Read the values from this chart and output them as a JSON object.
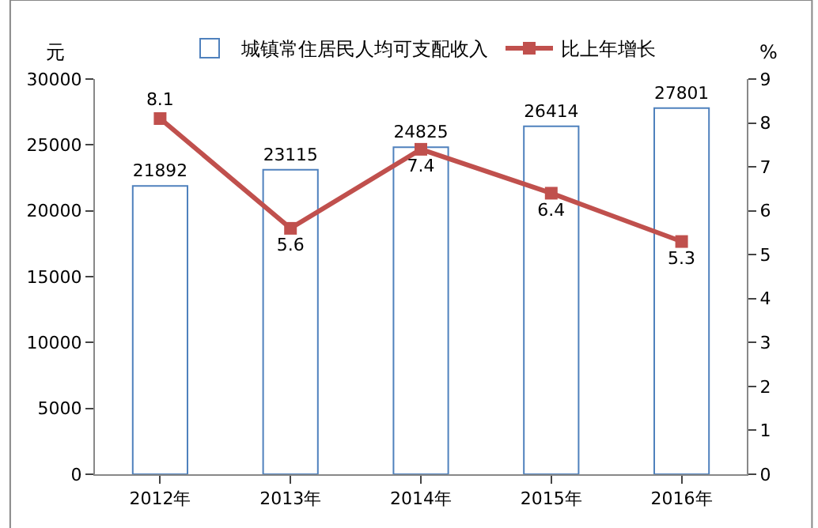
{
  "chart_data": {
    "type": "bar",
    "categories": [
      "2012年",
      "2013年",
      "2014年",
      "2015年",
      "2016年"
    ],
    "series": [
      {
        "name": "城镇常住居民人均可支配收入",
        "color": "#4f81bd",
        "values": [
          21892,
          23115,
          24825,
          26414,
          27801
        ]
      },
      {
        "name": "比上年增长",
        "type": "line",
        "axis": "y2",
        "color": "#c0504d",
        "values": [
          8.1,
          5.6,
          7.4,
          6.4,
          5.3
        ]
      }
    ],
    "ylabel": "元",
    "y2label": "%",
    "ylim": [
      0,
      30000
    ],
    "yticks": [
      0,
      5000,
      10000,
      15000,
      20000,
      25000,
      30000
    ],
    "y2lim": [
      0,
      9
    ],
    "y2ticks": [
      0,
      1,
      2,
      3,
      4,
      5,
      6,
      7,
      8,
      9
    ],
    "data_labels": true,
    "legend": "top",
    "marker": "square",
    "line_style": "solid"
  }
}
